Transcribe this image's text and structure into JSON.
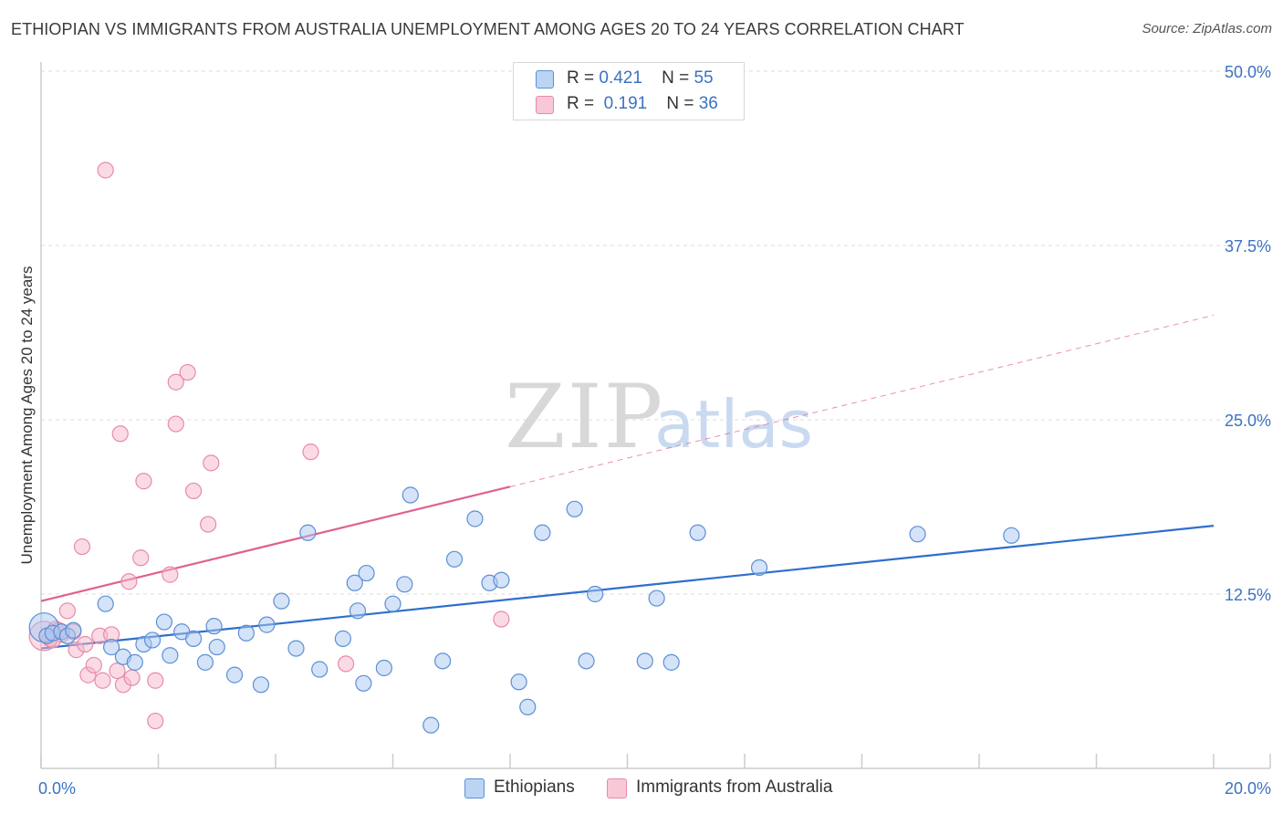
{
  "title": "ETHIOPIAN VS IMMIGRANTS FROM AUSTRALIA UNEMPLOYMENT AMONG AGES 20 TO 24 YEARS CORRELATION CHART",
  "source": "Source: ZipAtlas.com",
  "watermark": {
    "zip": "ZIP",
    "atlas": "atlas"
  },
  "legend": {
    "rows": [
      {
        "r_label": "R =",
        "r_value": "0.421",
        "n_label": "N =",
        "n_value": "55"
      },
      {
        "r_label": "R =",
        "r_value": "0.191",
        "n_label": "N =",
        "n_value": "36"
      }
    ]
  },
  "bottom_legend": {
    "series1": "Ethiopians",
    "series2": "Immigrants from Australia"
  },
  "colors": {
    "blue_fill": "#a9c8f0",
    "blue_stroke": "#5b8fd6",
    "blue_line": "#2f6fcb",
    "pink_fill": "#f6b8cb",
    "pink_stroke": "#e88aa8",
    "pink_line": "#e06090",
    "tick_label": "#3b72c4",
    "grid": "#dddddd"
  },
  "chart_data": {
    "type": "scatter",
    "title": "ETHIOPIAN VS IMMIGRANTS FROM AUSTRALIA UNEMPLOYMENT AMONG AGES 20 TO 24 YEARS CORRELATION CHART",
    "xlabel": "",
    "ylabel": "Unemployment Among Ages 20 to 24 years",
    "xlim": [
      0,
      20
    ],
    "ylim": [
      0,
      50
    ],
    "x_tick_labels": [
      "0.0%",
      "20.0%"
    ],
    "y_ticks": [
      12.5,
      25.0,
      37.5,
      50.0
    ],
    "y_tick_labels": [
      "12.5%",
      "25.0%",
      "37.5%",
      "50.0%"
    ],
    "grid": true,
    "legend_position": "top-center",
    "series": [
      {
        "name": "Ethiopians",
        "r": 0.421,
        "n": 55,
        "trend": {
          "x": [
            0,
            20
          ],
          "y": [
            8.6,
            17.4
          ],
          "style": "solid"
        },
        "points": [
          [
            0.05,
            10.1,
            "large"
          ],
          [
            0.1,
            9.5
          ],
          [
            0.2,
            9.7
          ],
          [
            0.35,
            9.8
          ],
          [
            0.45,
            9.5
          ],
          [
            0.55,
            9.9
          ],
          [
            1.1,
            11.8
          ],
          [
            1.2,
            8.7
          ],
          [
            1.4,
            8.0
          ],
          [
            1.6,
            7.6
          ],
          [
            1.75,
            8.9
          ],
          [
            1.9,
            9.2
          ],
          [
            2.1,
            10.5
          ],
          [
            2.2,
            8.1
          ],
          [
            2.4,
            9.8
          ],
          [
            2.6,
            9.3
          ],
          [
            2.8,
            7.6
          ],
          [
            2.95,
            10.2
          ],
          [
            3.0,
            8.7
          ],
          [
            3.3,
            6.7
          ],
          [
            3.5,
            9.7
          ],
          [
            3.75,
            6.0
          ],
          [
            3.85,
            10.3
          ],
          [
            4.1,
            12.0
          ],
          [
            4.35,
            8.6
          ],
          [
            4.55,
            16.9
          ],
          [
            4.75,
            7.1
          ],
          [
            5.15,
            9.3
          ],
          [
            5.35,
            13.3
          ],
          [
            5.4,
            11.3
          ],
          [
            5.5,
            6.1
          ],
          [
            5.55,
            14.0
          ],
          [
            5.85,
            7.2
          ],
          [
            6.0,
            11.8
          ],
          [
            6.2,
            13.2
          ],
          [
            6.3,
            19.6
          ],
          [
            6.65,
            3.1
          ],
          [
            6.85,
            7.7
          ],
          [
            7.05,
            15.0
          ],
          [
            7.4,
            17.9
          ],
          [
            7.65,
            13.3
          ],
          [
            7.85,
            13.5
          ],
          [
            8.15,
            6.2
          ],
          [
            8.3,
            4.4
          ],
          [
            8.55,
            16.9
          ],
          [
            9.1,
            18.6
          ],
          [
            9.3,
            7.7
          ],
          [
            9.45,
            12.5
          ],
          [
            10.3,
            7.7
          ],
          [
            10.5,
            12.2
          ],
          [
            10.75,
            7.6
          ],
          [
            11.2,
            16.9
          ],
          [
            12.25,
            14.4
          ],
          [
            14.95,
            16.8
          ],
          [
            16.55,
            16.7
          ]
        ]
      },
      {
        "name": "Immigrants from Australia",
        "r": 0.191,
        "n": 36,
        "trend": {
          "x": [
            0,
            20
          ],
          "y": [
            12.0,
            32.5
          ],
          "solid_until_x": 8.0,
          "style": "solid-then-dashed"
        },
        "points": [
          [
            0.05,
            9.5,
            "large"
          ],
          [
            0.15,
            9.3
          ],
          [
            0.25,
            10.0
          ],
          [
            0.35,
            9.6
          ],
          [
            0.45,
            11.3
          ],
          [
            0.55,
            9.8
          ],
          [
            0.6,
            8.5
          ],
          [
            0.7,
            15.9
          ],
          [
            0.75,
            8.9
          ],
          [
            0.8,
            6.7
          ],
          [
            0.9,
            7.4
          ],
          [
            1.0,
            9.5
          ],
          [
            1.05,
            6.3
          ],
          [
            1.1,
            42.9
          ],
          [
            1.2,
            9.6
          ],
          [
            1.3,
            7.0
          ],
          [
            1.35,
            24.0
          ],
          [
            1.4,
            6.0
          ],
          [
            1.5,
            13.4
          ],
          [
            1.55,
            6.5
          ],
          [
            1.7,
            15.1
          ],
          [
            1.75,
            20.6
          ],
          [
            1.95,
            3.4
          ],
          [
            1.95,
            6.3
          ],
          [
            2.2,
            13.9
          ],
          [
            2.3,
            27.7
          ],
          [
            2.3,
            24.7
          ],
          [
            2.5,
            28.4
          ],
          [
            2.6,
            19.9
          ],
          [
            2.85,
            17.5
          ],
          [
            2.9,
            21.9
          ],
          [
            4.6,
            22.7
          ],
          [
            5.2,
            7.5
          ],
          [
            7.85,
            10.7
          ],
          [
            0.2,
            9.2
          ],
          [
            0.3,
            9.9
          ]
        ]
      }
    ]
  }
}
